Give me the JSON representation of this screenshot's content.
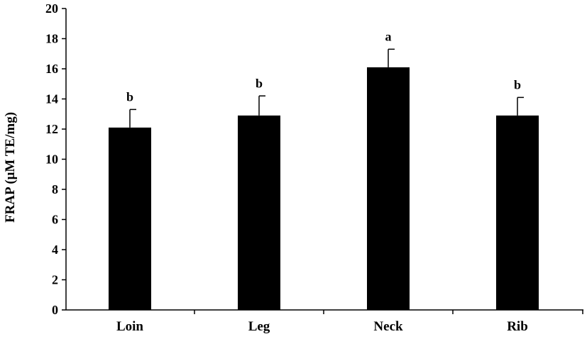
{
  "chart_data": {
    "type": "bar",
    "title": "",
    "xlabel": "",
    "ylabel": "FRAP (μM TE/mg)",
    "categories": [
      "Loin",
      "Leg",
      "Neck",
      "Rib"
    ],
    "values": [
      12.1,
      12.9,
      16.1,
      12.9
    ],
    "errors": [
      1.2,
      1.3,
      1.2,
      1.2
    ],
    "significance_letters": [
      "b",
      "b",
      "a",
      "b"
    ],
    "ylim": [
      0,
      20
    ],
    "yticks": [
      0,
      2,
      4,
      6,
      8,
      10,
      12,
      14,
      16,
      18,
      20
    ],
    "grid": false,
    "legend": "none",
    "bar_color": "#000000",
    "axis_color": "#000000"
  }
}
